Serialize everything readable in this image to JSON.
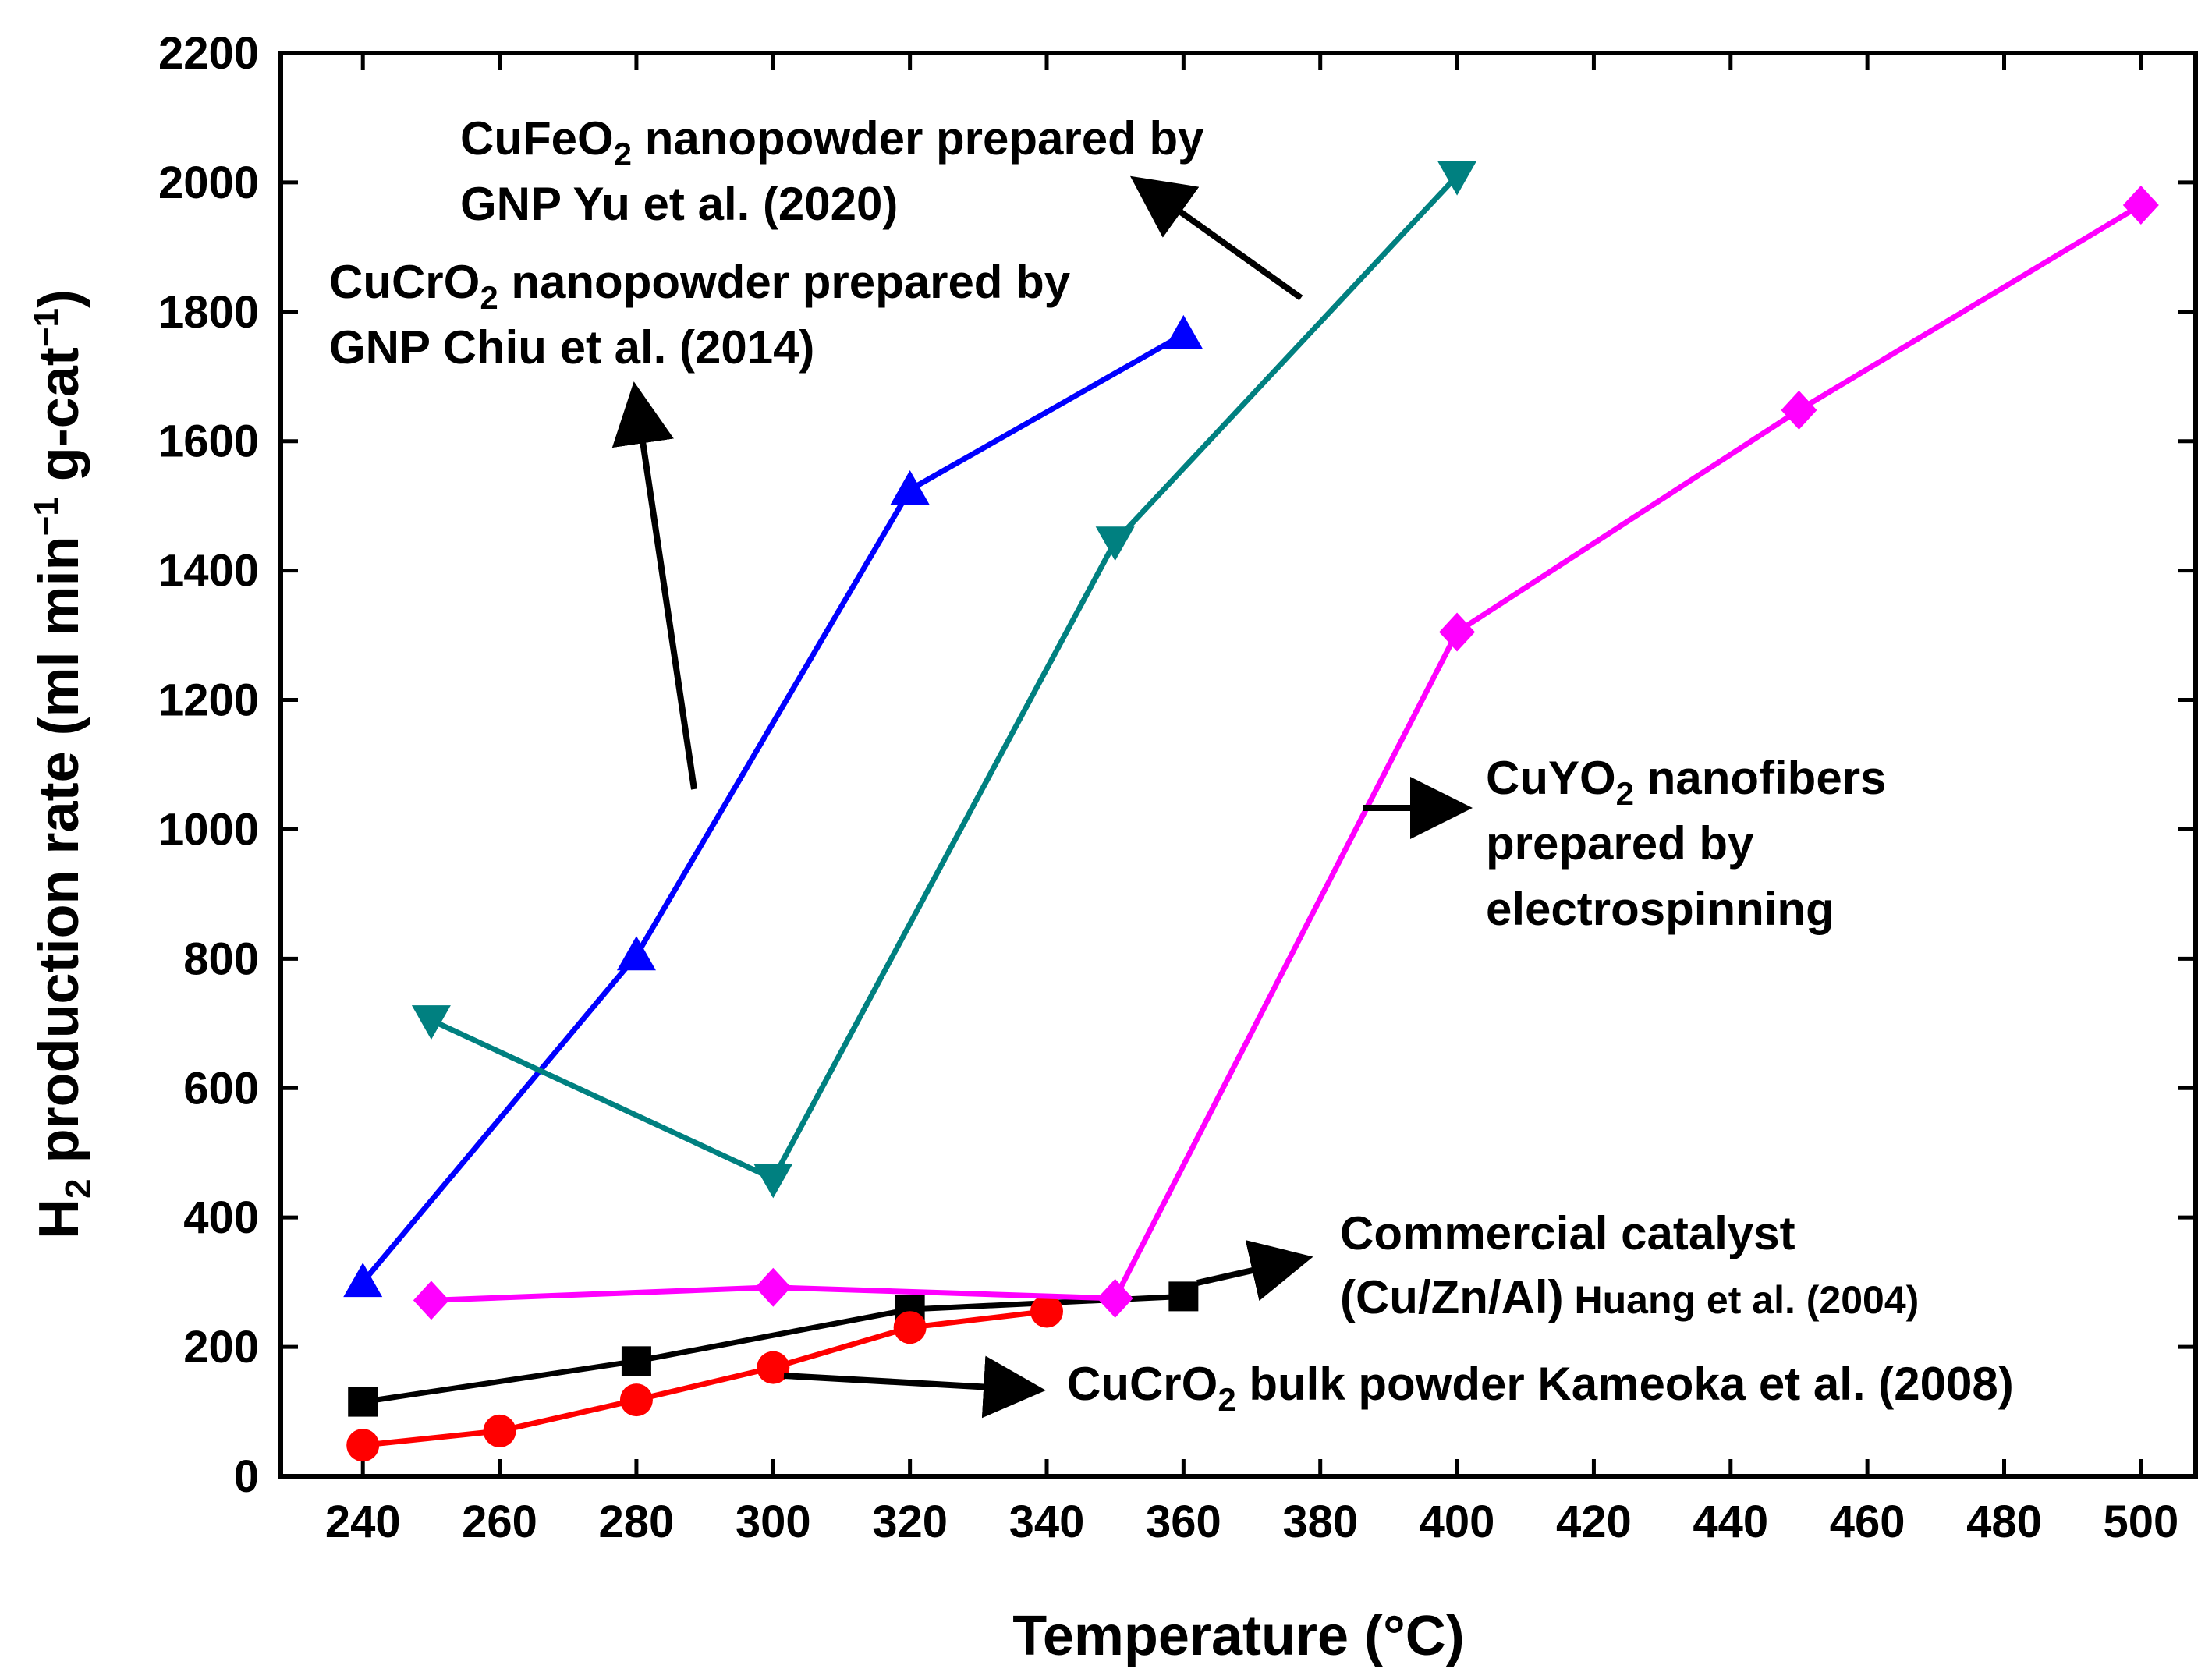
{
  "chart_data": {
    "type": "line",
    "title": "",
    "xlabel": "Temperature (°C)",
    "ylabel": {
      "prefix": "H",
      "sub": "2",
      "main": " production rate (ml min",
      "sup1": "−1",
      "mid": " g-cat",
      "sup2": "−1",
      "end": ")"
    },
    "xlim": [
      228,
      508
    ],
    "ylim": [
      0,
      2200
    ],
    "x_ticks": [
      240,
      260,
      280,
      300,
      320,
      340,
      360,
      380,
      400,
      420,
      440,
      460,
      480,
      500
    ],
    "y_ticks": [
      0,
      200,
      400,
      600,
      800,
      1000,
      1200,
      1400,
      1600,
      1800,
      2000,
      2200
    ],
    "grid": false,
    "series": [
      {
        "name": "Commercial catalyst (Cu/Zn/Al) Huang et al. (2004)",
        "color": "#000000",
        "marker": "square",
        "x": [
          240,
          280,
          320,
          360
        ],
        "y": [
          115,
          178,
          258,
          278
        ]
      },
      {
        "name": "CuCrO2 bulk powder Kameoka et al. (2008)",
        "color": "#ff0000",
        "marker": "circle",
        "x": [
          240,
          260,
          280,
          300,
          320,
          340
        ],
        "y": [
          48,
          70,
          118,
          168,
          230,
          255
        ]
      },
      {
        "name": "CuCrO2 nanopowder prepared by GNP Chiu et al. (2014)",
        "color": "#0000ff",
        "marker": "triangle-up",
        "x": [
          240,
          280,
          320,
          360
        ],
        "y": [
          300,
          805,
          1525,
          1765
        ]
      },
      {
        "name": "CuFeO2 nanopowder prepared by GNP Yu et al. (2020)",
        "color": "#008080",
        "marker": "triangle-down",
        "x": [
          250,
          300,
          350,
          400
        ],
        "y": [
          705,
          460,
          1445,
          2010
        ]
      },
      {
        "name": "CuYO2 nanofibers prepared by electrospinning",
        "color": "#ff00ff",
        "marker": "diamond",
        "x": [
          250,
          300,
          350,
          400,
          450,
          500
        ],
        "y": [
          272,
          292,
          275,
          1305,
          1648,
          1965
        ]
      }
    ],
    "annotations": {
      "cufeo2": {
        "line1_a": "CuFeO",
        "line1_sub": "2",
        "line1_b": " nanopowder prepared by",
        "line2": "GNP Yu et al. (2020)"
      },
      "cucro2_nano": {
        "line1_a": "CuCrO",
        "line1_sub": "2",
        "line1_b": " nanopowder prepared by",
        "line2": "GNP Chiu et al. (2014)"
      },
      "cuyo2": {
        "line1_a": "CuYO",
        "line1_sub": "2",
        "line1_b": " nanofibers",
        "line2": "prepared by",
        "line3": "electrospinning"
      },
      "commercial": {
        "line1": "Commercial catalyst",
        "line2_a": "(Cu/Zn/Al)",
        "line2_b": " Huang et al. (2004)"
      },
      "bulk": {
        "a": "CuCrO",
        "sub": "2",
        "b": " bulk powder Kameoka et al. (2008)"
      }
    }
  }
}
